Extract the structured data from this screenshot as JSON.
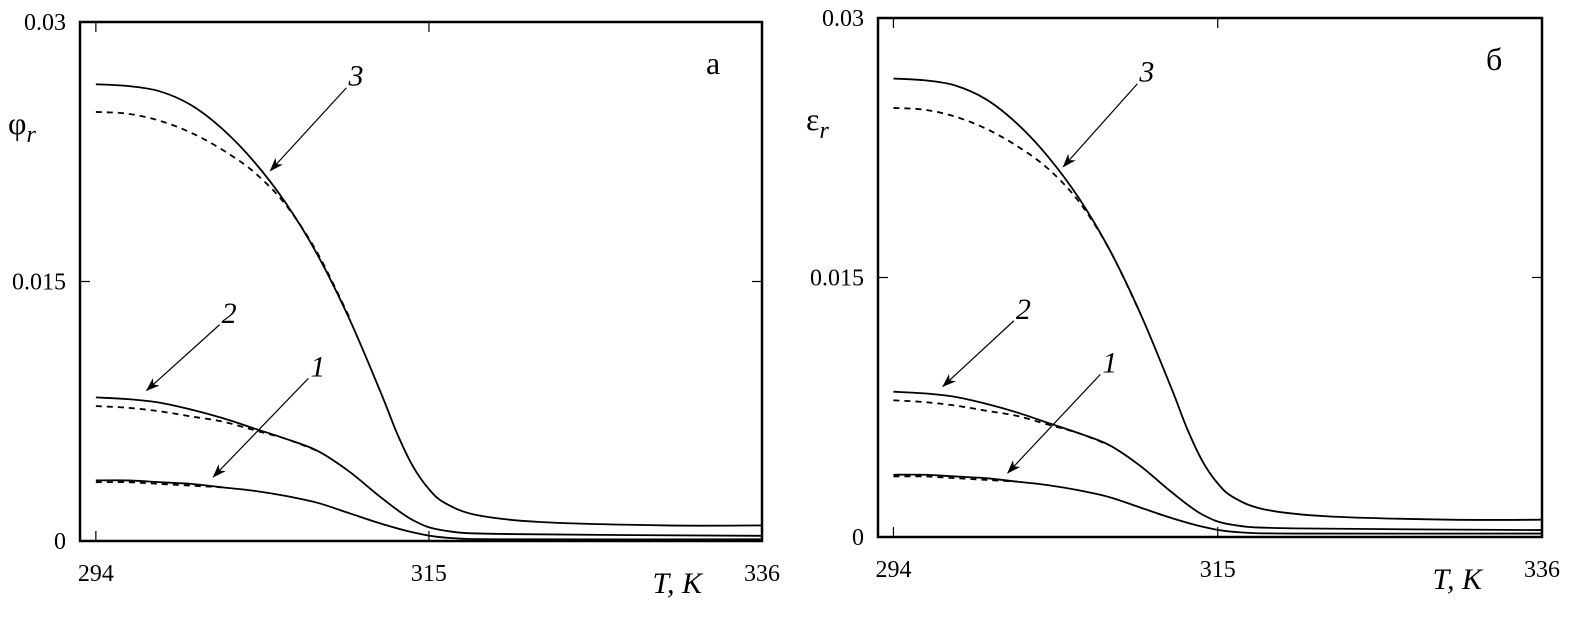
{
  "chart_data": [
    {
      "type": "line",
      "panel_label": "а",
      "ylabel_symbol": "φ",
      "ylabel_sub": "r",
      "xlabel": "T, K",
      "xlim": [
        293,
        336
      ],
      "ylim": [
        0,
        0.03
      ],
      "xticks": [
        "294",
        "315",
        "336"
      ],
      "xtick_values": [
        294,
        315,
        336
      ],
      "yticks": [
        "0",
        "0.015",
        "0.03"
      ],
      "ytick_values": [
        0,
        0.015,
        0.03
      ],
      "grid": false,
      "series": [
        {
          "label": "3",
          "style": "solid",
          "points": [
            [
              294,
              0.0264
            ],
            [
              296,
              0.0263
            ],
            [
              298,
              0.026
            ],
            [
              300,
              0.0252
            ],
            [
              302,
              0.0238
            ],
            [
              304,
              0.0219
            ],
            [
              306,
              0.0195
            ],
            [
              308,
              0.0165
            ],
            [
              310,
              0.0128
            ],
            [
              312,
              0.0085
            ],
            [
              313,
              0.0062
            ],
            [
              314,
              0.0043
            ],
            [
              315,
              0.003
            ],
            [
              316,
              0.0022
            ],
            [
              318,
              0.0015
            ],
            [
              322,
              0.0011
            ],
            [
              330,
              0.0009
            ],
            [
              336,
              0.0009
            ]
          ]
        },
        {
          "label": "3",
          "style": "dashed",
          "points": [
            [
              294,
              0.0248
            ],
            [
              296,
              0.0247
            ],
            [
              298,
              0.0243
            ],
            [
              300,
              0.0236
            ],
            [
              302,
              0.0226
            ],
            [
              304,
              0.0213
            ],
            [
              306,
              0.0194
            ],
            [
              308,
              0.0166
            ],
            [
              310,
              0.0129
            ]
          ]
        },
        {
          "label": "2",
          "style": "solid",
          "points": [
            [
              294,
              0.0083
            ],
            [
              296,
              0.0082
            ],
            [
              298,
              0.008
            ],
            [
              300,
              0.0076
            ],
            [
              302,
              0.0071
            ],
            [
              304,
              0.0065
            ],
            [
              306,
              0.0059
            ],
            [
              308,
              0.0052
            ],
            [
              310,
              0.004
            ],
            [
              312,
              0.0025
            ],
            [
              314,
              0.0012
            ],
            [
              316,
              0.0006
            ],
            [
              320,
              0.0004
            ],
            [
              336,
              0.0003
            ]
          ]
        },
        {
          "label": "2",
          "style": "dashed",
          "points": [
            [
              294,
              0.0078
            ],
            [
              296,
              0.0077
            ],
            [
              298,
              0.0075
            ],
            [
              300,
              0.0072
            ],
            [
              302,
              0.0069
            ],
            [
              304,
              0.0064
            ],
            [
              306,
              0.0059
            ],
            [
              308,
              0.0052
            ]
          ]
        },
        {
          "label": "1",
          "style": "solid",
          "points": [
            [
              294,
              0.0035
            ],
            [
              296,
              0.0035
            ],
            [
              298,
              0.0034
            ],
            [
              300,
              0.0033
            ],
            [
              302,
              0.0031
            ],
            [
              304,
              0.0029
            ],
            [
              306,
              0.0026
            ],
            [
              308,
              0.0022
            ],
            [
              310,
              0.0016
            ],
            [
              312,
              0.001
            ],
            [
              314,
              0.0005
            ],
            [
              316,
              0.0002
            ],
            [
              320,
              0.0001
            ],
            [
              336,
              0.0001
            ]
          ]
        },
        {
          "label": "1",
          "style": "dashed",
          "points": [
            [
              294,
              0.0034
            ],
            [
              296,
              0.0034
            ],
            [
              298,
              0.0033
            ],
            [
              300,
              0.0032
            ],
            [
              302,
              0.0031
            ]
          ]
        }
      ],
      "annotations": [
        {
          "text": "3",
          "from": [
            309.8,
            0.0262
          ],
          "to": [
            305.0,
            0.0214
          ]
        },
        {
          "text": "2",
          "from": [
            301.8,
            0.0125
          ],
          "to": [
            297.2,
            0.0087
          ]
        },
        {
          "text": "1",
          "from": [
            307.4,
            0.0094
          ],
          "to": [
            301.4,
            0.0037
          ]
        }
      ]
    },
    {
      "type": "line",
      "panel_label": "б",
      "ylabel_symbol": "ε",
      "ylabel_sub": "r",
      "xlabel": "T, K",
      "xlim": [
        293,
        336
      ],
      "ylim": [
        0,
        0.03
      ],
      "xticks": [
        "294",
        "315",
        "336"
      ],
      "xtick_values": [
        294,
        315,
        336
      ],
      "yticks": [
        "0",
        "0.015",
        "0.03"
      ],
      "ytick_values": [
        0,
        0.015,
        0.03
      ],
      "grid": false,
      "series": [
        {
          "label": "3",
          "style": "solid",
          "points": [
            [
              294,
              0.0265
            ],
            [
              296,
              0.0264
            ],
            [
              298,
              0.0261
            ],
            [
              300,
              0.0253
            ],
            [
              302,
              0.0239
            ],
            [
              304,
              0.022
            ],
            [
              306,
              0.0196
            ],
            [
              308,
              0.0166
            ],
            [
              310,
              0.0129
            ],
            [
              312,
              0.0086
            ],
            [
              313,
              0.0063
            ],
            [
              314,
              0.0044
            ],
            [
              315,
              0.0031
            ],
            [
              316,
              0.0023
            ],
            [
              318,
              0.0016
            ],
            [
              322,
              0.0012
            ],
            [
              330,
              0.001
            ],
            [
              336,
              0.001
            ]
          ]
        },
        {
          "label": "3",
          "style": "dashed",
          "points": [
            [
              294,
              0.0248
            ],
            [
              296,
              0.0247
            ],
            [
              298,
              0.0243
            ],
            [
              300,
              0.0236
            ],
            [
              302,
              0.0226
            ],
            [
              304,
              0.0213
            ],
            [
              306,
              0.0194
            ],
            [
              308,
              0.0166
            ],
            [
              310,
              0.0129
            ]
          ]
        },
        {
          "label": "2",
          "style": "solid",
          "points": [
            [
              294,
              0.0084
            ],
            [
              296,
              0.0083
            ],
            [
              298,
              0.0081
            ],
            [
              300,
              0.0077
            ],
            [
              302,
              0.0072
            ],
            [
              304,
              0.0066
            ],
            [
              306,
              0.006
            ],
            [
              308,
              0.0053
            ],
            [
              310,
              0.0041
            ],
            [
              312,
              0.0026
            ],
            [
              314,
              0.0013
            ],
            [
              316,
              0.0007
            ],
            [
              320,
              0.0005
            ],
            [
              336,
              0.0004
            ]
          ]
        },
        {
          "label": "2",
          "style": "dashed",
          "points": [
            [
              294,
              0.0079
            ],
            [
              296,
              0.0078
            ],
            [
              298,
              0.0076
            ],
            [
              300,
              0.0073
            ],
            [
              302,
              0.007
            ],
            [
              304,
              0.0065
            ],
            [
              306,
              0.006
            ],
            [
              308,
              0.0053
            ]
          ]
        },
        {
          "label": "1",
          "style": "solid",
          "points": [
            [
              294,
              0.0036
            ],
            [
              296,
              0.0036
            ],
            [
              298,
              0.0035
            ],
            [
              300,
              0.0034
            ],
            [
              302,
              0.0032
            ],
            [
              304,
              0.003
            ],
            [
              306,
              0.0027
            ],
            [
              308,
              0.0023
            ],
            [
              310,
              0.0017
            ],
            [
              312,
              0.0011
            ],
            [
              314,
              0.0006
            ],
            [
              316,
              0.0003
            ],
            [
              320,
              0.0002
            ],
            [
              336,
              0.0002
            ]
          ]
        },
        {
          "label": "1",
          "style": "dashed",
          "points": [
            [
              294,
              0.0035
            ],
            [
              296,
              0.0035
            ],
            [
              298,
              0.0034
            ],
            [
              300,
              0.0033
            ],
            [
              302,
              0.0032
            ]
          ]
        }
      ],
      "annotations": [
        {
          "text": "3",
          "from": [
            309.8,
            0.0262
          ],
          "to": [
            305.0,
            0.0214
          ]
        },
        {
          "text": "2",
          "from": [
            301.8,
            0.0125
          ],
          "to": [
            297.2,
            0.0087
          ]
        },
        {
          "text": "1",
          "from": [
            307.4,
            0.0094
          ],
          "to": [
            301.4,
            0.0037
          ]
        }
      ]
    }
  ]
}
